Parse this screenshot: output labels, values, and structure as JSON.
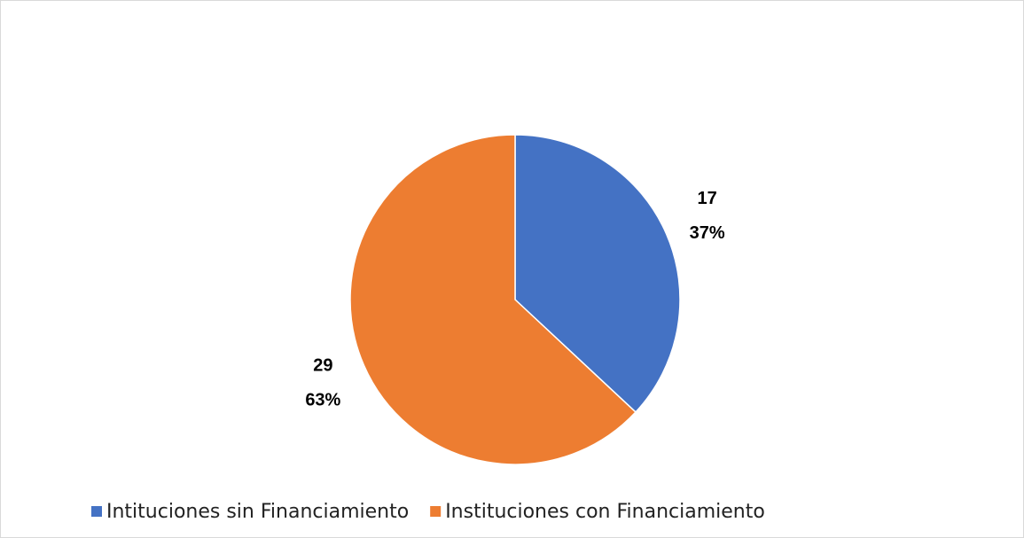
{
  "chart_data": {
    "type": "pie",
    "categories": [
      "Intituciones sin Financiamiento",
      "Instituciones con Financiamiento"
    ],
    "values": [
      17,
      29
    ],
    "percent_labels": [
      "37%",
      "63%"
    ],
    "colors": [
      "#4472c4",
      "#ed7d31"
    ],
    "legend": "bottom"
  }
}
